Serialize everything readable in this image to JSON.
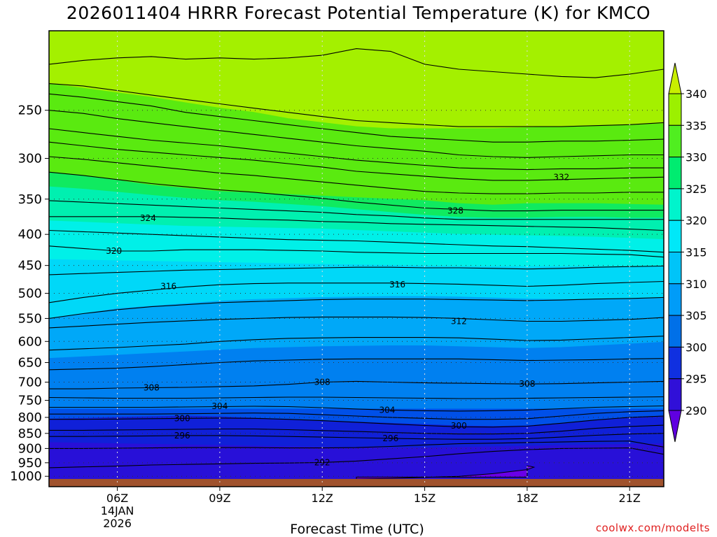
{
  "title": "2026011404 HRRR Forecast Potential Temperature (K) for KMCO",
  "xlabel": "Forecast Time (UTC)",
  "credit": "coolwx.com/modelts",
  "chart_data": {
    "type": "heatmap",
    "title": "2026011404 HRRR Forecast Potential Temperature (K) for KMCO",
    "xlabel": "Forecast Time (UTC)",
    "ylabel": "",
    "x_range_hours": [
      4,
      22
    ],
    "y_log_pressure_range_hPa": [
      1040,
      185
    ],
    "x_ticks": [
      {
        "hour": 6,
        "label": "06Z",
        "sub1": "14JAN",
        "sub2": "2026"
      },
      {
        "hour": 9,
        "label": "09Z"
      },
      {
        "hour": 12,
        "label": "12Z"
      },
      {
        "hour": 15,
        "label": "15Z"
      },
      {
        "hour": 18,
        "label": "18Z"
      },
      {
        "hour": 21,
        "label": "21Z"
      }
    ],
    "y_ticks": [
      250,
      300,
      350,
      400,
      450,
      500,
      550,
      600,
      650,
      700,
      750,
      800,
      850,
      900,
      950,
      1000
    ],
    "grid": true,
    "ground_color": "#a0522d",
    "colorbar": {
      "ticks": [
        340,
        335,
        330,
        325,
        320,
        315,
        310,
        305,
        300,
        295,
        290
      ],
      "bands": [
        {
          "min": 340,
          "color": "#c8ee00"
        },
        {
          "min": 335,
          "color": "#9cf000"
        },
        {
          "min": 330,
          "color": "#50ee20"
        },
        {
          "min": 325,
          "color": "#00ec70"
        },
        {
          "min": 320,
          "color": "#00f4cc"
        },
        {
          "min": 315,
          "color": "#00e8f8"
        },
        {
          "min": 310,
          "color": "#00c4f8"
        },
        {
          "min": 305,
          "color": "#009cf8"
        },
        {
          "min": 300,
          "color": "#0070e8"
        },
        {
          "min": 295,
          "color": "#1030e0"
        },
        {
          "min": 290,
          "color": "#3010d8"
        },
        {
          "min": 0,
          "color": "#6000e0"
        }
      ]
    },
    "fill_bands": [
      {
        "min": 340,
        "color": "#a4f000",
        "top": 185,
        "bottom": [
          226,
          230,
          234,
          238,
          243,
          248,
          252,
          258,
          262,
          266,
          268,
          268,
          268,
          268,
          267,
          266,
          265,
          264,
          263
        ]
      },
      {
        "min": 335,
        "color": "#5aea10",
        "top": "prev",
        "bottom": [
          316,
          320,
          326,
          332,
          336,
          340,
          342,
          344,
          346,
          348,
          350,
          352,
          356,
          358,
          356,
          356,
          356,
          357,
          358
        ]
      },
      {
        "min": 330,
        "color": "#10ea60",
        "top": "prev",
        "bottom": [
          334,
          337,
          341,
          345,
          349,
          352,
          354,
          357,
          360,
          364,
          368,
          372,
          375,
          376,
          376,
          375,
          375,
          376,
          376
        ]
      },
      {
        "min": 325,
        "color": "#00f0b0",
        "top": "prev",
        "bottom": [
          380,
          382,
          384,
          386,
          388,
          389,
          390,
          391,
          392,
          394,
          396,
          398,
          400,
          401,
          402,
          403,
          404,
          406,
          408
        ]
      },
      {
        "min": 320,
        "color": "#00f0e8",
        "top": "prev",
        "bottom": [
          440,
          441,
          442,
          443,
          444,
          445,
          446,
          447,
          448,
          449,
          450,
          451,
          452,
          452,
          452,
          452,
          452,
          452,
          452
        ]
      },
      {
        "min": 315,
        "color": "#00d8f8",
        "top": "prev",
        "bottom": [
          550,
          540,
          530,
          525,
          520,
          515,
          512,
          510,
          508,
          507,
          506,
          506,
          507,
          509,
          511,
          512,
          512,
          511,
          510
        ]
      },
      {
        "min": 310,
        "color": "#00a8f8",
        "top": "prev",
        "bottom": [
          640,
          636,
          632,
          628,
          624,
          620,
          616,
          614,
          612,
          611,
          610,
          610,
          612,
          614,
          616,
          614,
          610,
          606,
          602
        ]
      },
      {
        "min": 305,
        "color": "#0080f0",
        "top": "prev",
        "bottom": [
          775,
          775,
          775,
          775,
          775,
          775,
          775,
          775,
          775,
          775,
          775,
          775,
          775,
          775,
          775,
          775,
          775,
          775,
          775
        ]
      },
      {
        "min": 300,
        "color": "#0050e8",
        "top": "prev",
        "bottom": [
          805,
          803,
          800,
          798,
          796,
          798,
          802,
          806,
          810,
          814,
          818,
          822,
          826,
          828,
          826,
          818,
          808,
          800,
          796
        ]
      },
      {
        "min": 295,
        "color": "#1020d8",
        "top": "prev",
        "bottom": [
          880,
          882,
          884,
          886,
          888,
          890,
          892,
          894,
          896,
          897,
          898,
          898,
          896,
          894,
          892,
          890,
          888,
          886,
          884
        ]
      },
      {
        "min": 290,
        "color": "#2810d8",
        "top": "prev",
        "bottom": [
          1040,
          1040,
          1040,
          1040,
          1040,
          1040,
          1040,
          1040,
          1040,
          1040,
          1040,
          1040,
          1040,
          1040,
          1040,
          1040,
          1040,
          1040,
          1040
        ]
      }
    ],
    "purple_pocket": {
      "color": "#6a00e8",
      "top": [
        1010,
        1008,
        1004,
        1000,
        990,
        975,
        966,
        963,
        962
      ],
      "x_hours": [
        13,
        14,
        15,
        16,
        17,
        18,
        18.2,
        18.1,
        18
      ],
      "bottom": 1003
    },
    "contours": [
      {
        "value": 344,
        "p": [
          210,
          207,
          205,
          204,
          206,
          205,
          206,
          205,
          203,
          198,
          200,
          210,
          214,
          216,
          218,
          220,
          221,
          218,
          214
        ]
      },
      {
        "value": 340,
        "p": [
          226,
          228,
          232,
          236,
          240,
          244,
          248,
          252,
          256,
          260,
          262,
          264,
          266,
          266,
          266,
          266,
          265,
          264,
          262
        ]
      },
      {
        "value": 338,
        "p": [
          235,
          238,
          242,
          246,
          252,
          256,
          260,
          264,
          268,
          272,
          276,
          278,
          280,
          282,
          282,
          281,
          281,
          280,
          279
        ]
      },
      {
        "value": 336,
        "p": [
          250,
          253,
          258,
          262,
          266,
          270,
          274,
          278,
          282,
          286,
          289,
          292,
          296,
          298,
          299,
          298,
          297,
          296,
          296
        ]
      },
      {
        "value": 334,
        "p": [
          268,
          272,
          276,
          280,
          283,
          286,
          290,
          294,
          298,
          302,
          305,
          308,
          311,
          312,
          313,
          312,
          312,
          311,
          311
        ]
      },
      {
        "value": 332,
        "p": [
          282,
          286,
          290,
          293,
          296,
          299,
          302,
          306,
          310,
          315,
          318,
          321,
          324,
          326,
          326,
          325,
          324,
          323,
          322
        ]
      },
      {
        "value": 330,
        "p": [
          298,
          301,
          305,
          309,
          313,
          317,
          320,
          324,
          328,
          332,
          336,
          340,
          342,
          343,
          343,
          342,
          342,
          341,
          341
        ]
      },
      {
        "value": 328,
        "p": [
          316,
          320,
          325,
          330,
          334,
          338,
          341,
          345,
          349,
          354,
          358,
          362,
          364,
          366,
          366,
          365,
          365,
          365,
          365
        ]
      },
      {
        "value": 326,
        "p": [
          352,
          354,
          356,
          358,
          360,
          362,
          364,
          366,
          368,
          371,
          373,
          376,
          378,
          378,
          378,
          378,
          378,
          378,
          378
        ]
      },
      {
        "value": 324,
        "p": [
          374,
          374,
          374,
          374,
          375,
          376,
          378,
          379,
          381,
          382,
          384,
          385,
          386,
          387,
          388,
          389,
          390,
          392,
          394
        ]
      },
      {
        "value": 322,
        "p": [
          394,
          396,
          398,
          400,
          402,
          404,
          406,
          408,
          409,
          410,
          412,
          414,
          416,
          418,
          419,
          421,
          423,
          425,
          428
        ]
      },
      {
        "value": 320,
        "p": [
          418,
          422,
          426,
          426,
          424,
          424,
          424,
          425,
          426,
          428,
          429,
          430,
          430,
          430,
          430,
          430,
          431,
          432,
          436
        ]
      },
      {
        "value": 318,
        "p": [
          466,
          464,
          462,
          460,
          458,
          457,
          456,
          455,
          454,
          453,
          453,
          454,
          454,
          455,
          456,
          455,
          453,
          452,
          451
        ]
      },
      {
        "value": 316,
        "p": [
          518,
          508,
          500,
          494,
          488,
          484,
          482,
          481,
          481,
          481,
          481,
          482,
          483,
          485,
          487,
          485,
          482,
          480,
          478
        ]
      },
      {
        "value": 314,
        "p": [
          550,
          540,
          532,
          526,
          522,
          518,
          516,
          514,
          512,
          511,
          511,
          511,
          512,
          513,
          514,
          513,
          511,
          510,
          508
        ]
      },
      {
        "value": 312,
        "p": [
          570,
          566,
          562,
          558,
          555,
          552,
          550,
          548,
          547,
          547,
          547,
          548,
          550,
          553,
          556,
          556,
          554,
          552,
          548
        ]
      },
      {
        "value": 310,
        "p": [
          620,
          617,
          614,
          610,
          606,
          600,
          596,
          593,
          592,
          591,
          591,
          591,
          592,
          595,
          598,
          597,
          594,
          591,
          588
        ]
      },
      {
        "value": 308,
        "p": [
          668,
          666,
          664,
          660,
          655,
          650,
          646,
          644,
          642,
          641,
          641,
          641,
          641,
          643,
          645,
          644,
          643,
          641,
          640
        ]
      },
      {
        "value": 308,
        "p": [
          718,
          718,
          716,
          715,
          714,
          712,
          710,
          706,
          700,
          698,
          700,
          702,
          703,
          704,
          705,
          704,
          702,
          700,
          698
        ]
      },
      {
        "value": 306,
        "p": [
          742,
          743,
          744,
          744,
          744,
          743,
          742,
          741,
          741,
          742,
          743,
          744,
          745,
          745,
          744,
          743,
          742,
          741,
          740
        ]
      },
      {
        "value": 304,
        "p": [
          770,
          770,
          770,
          770,
          769,
          768,
          767,
          768,
          771,
          775,
          778,
          780,
          781,
          780,
          778,
          774,
          770,
          768,
          766
        ]
      },
      {
        "value": 302,
        "p": [
          790,
          790,
          790,
          790,
          789,
          788,
          787,
          788,
          792,
          796,
          800,
          803,
          806,
          806,
          804,
          796,
          788,
          783,
          780
        ]
      },
      {
        "value": 300,
        "p": [
          806,
          806,
          805,
          804,
          803,
          802,
          803,
          806,
          810,
          815,
          820,
          825,
          829,
          830,
          827,
          818,
          808,
          800,
          796
        ]
      },
      {
        "value": 298,
        "p": [
          840,
          840,
          839,
          838,
          837,
          836,
          836,
          838,
          841,
          844,
          847,
          850,
          852,
          852,
          850,
          843,
          834,
          828,
          824
        ]
      },
      {
        "value": 296,
        "p": [
          860,
          860,
          859,
          858,
          857,
          857,
          858,
          860,
          862,
          864,
          866,
          868,
          869,
          869,
          867,
          862,
          856,
          852,
          850
        ]
      },
      {
        "value": 294,
        "p": [
          900,
          900,
          899,
          898,
          897,
          897,
          897,
          898,
          898,
          897,
          893,
          888,
          884,
          882,
          880,
          878,
          876,
          875,
          895
        ]
      },
      {
        "value": 292,
        "p": [
          968,
          965,
          962,
          958,
          956,
          954,
          952,
          951,
          949,
          944,
          936,
          928,
          918,
          910,
          904,
          900,
          899,
          898,
          920
        ]
      }
    ],
    "contour_labels": [
      {
        "text": "332",
        "hour": 19,
        "p": 322
      },
      {
        "text": "328",
        "hour": 15.9,
        "p": 366
      },
      {
        "text": "324",
        "hour": 6.9,
        "p": 376
      },
      {
        "text": "320",
        "hour": 5.9,
        "p": 426
      },
      {
        "text": "316",
        "hour": 14.2,
        "p": 484
      },
      {
        "text": "316",
        "hour": 7.5,
        "p": 487
      },
      {
        "text": "312",
        "hour": 16,
        "p": 556
      },
      {
        "text": "308",
        "hour": 12,
        "p": 700
      },
      {
        "text": "308",
        "hour": 18,
        "p": 705
      },
      {
        "text": "308",
        "hour": 7,
        "p": 715
      },
      {
        "text": "304",
        "hour": 9,
        "p": 767
      },
      {
        "text": "304",
        "hour": 13.9,
        "p": 778
      },
      {
        "text": "300",
        "hour": 7.9,
        "p": 803
      },
      {
        "text": "300",
        "hour": 16,
        "p": 826
      },
      {
        "text": "296",
        "hour": 7.9,
        "p": 857
      },
      {
        "text": "296",
        "hour": 14,
        "p": 866
      },
      {
        "text": "292",
        "hour": 12,
        "p": 949
      }
    ]
  }
}
